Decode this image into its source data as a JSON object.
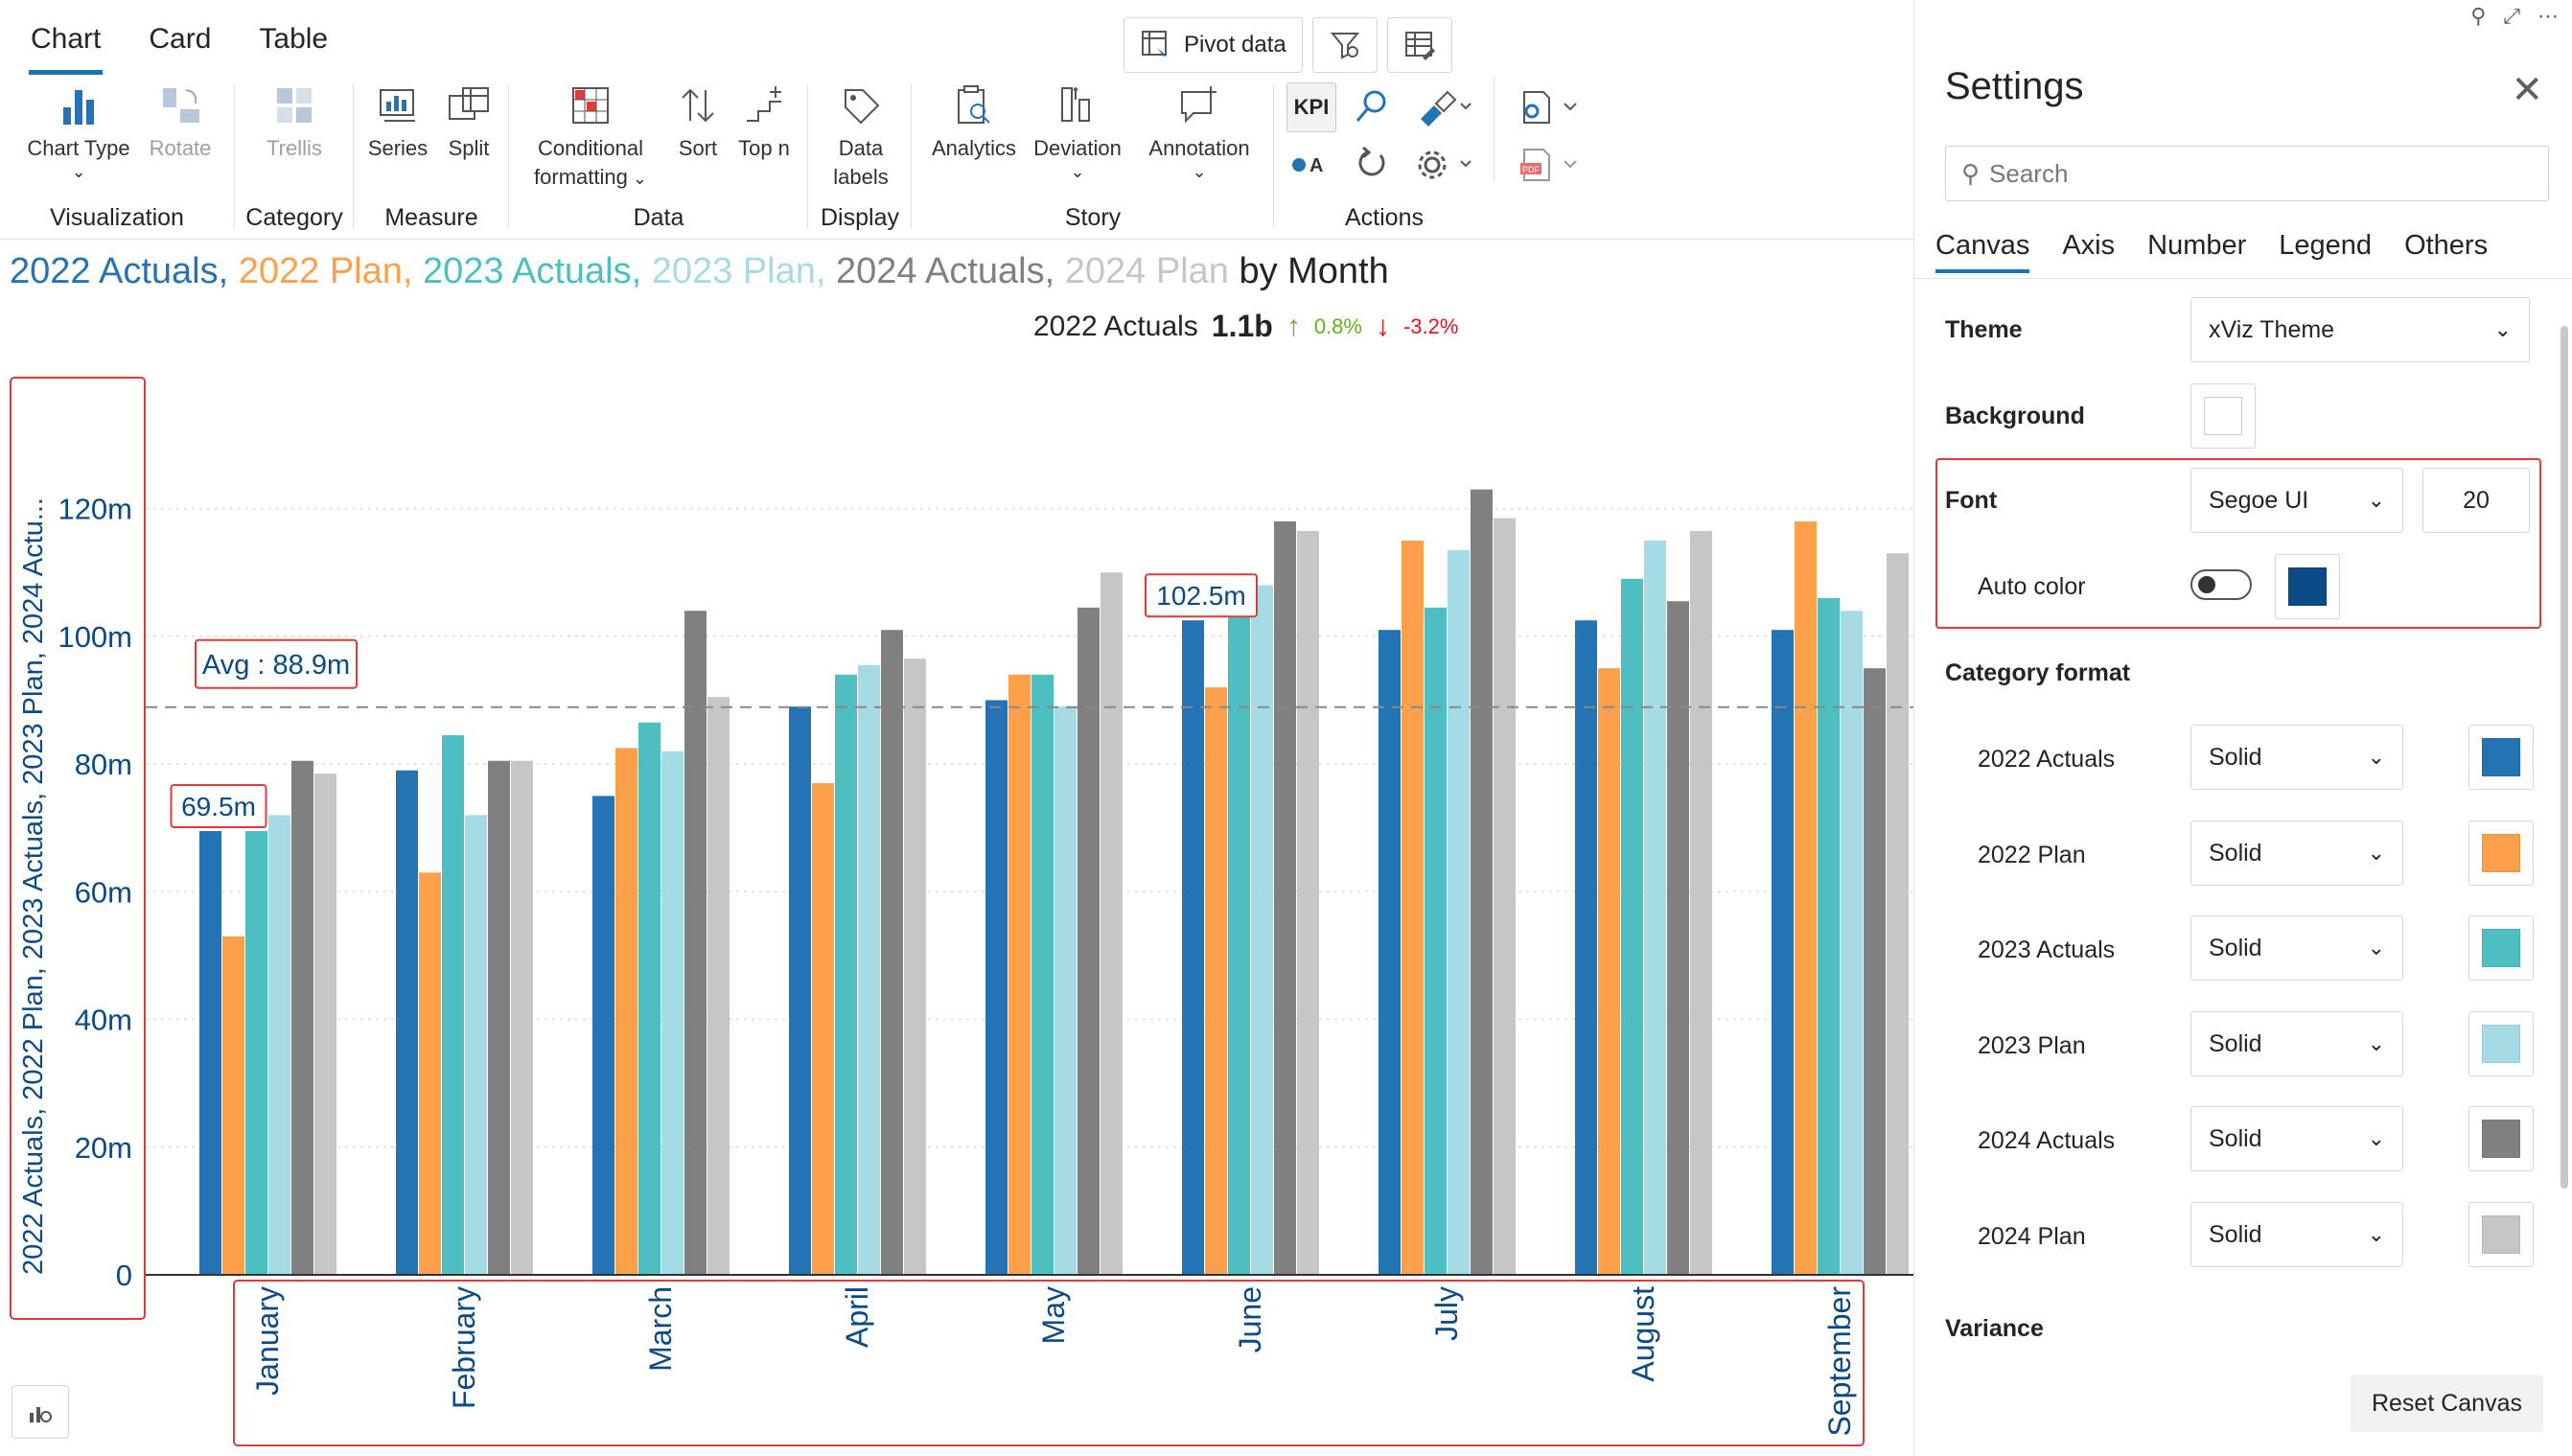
{
  "tabs": [
    "Chart",
    "Card",
    "Table"
  ],
  "top_buttons": {
    "pivot": "Pivot data"
  },
  "ribbon": {
    "visualization": {
      "label": "Visualization",
      "chart_type": "Chart Type",
      "rotate": "Rotate"
    },
    "category": {
      "label": "Category",
      "trellis": "Trellis"
    },
    "measure": {
      "label": "Measure",
      "series": "Series",
      "split": "Split"
    },
    "data": {
      "label": "Data",
      "conditional_1": "Conditional",
      "conditional_2": "formatting",
      "sort": "Sort",
      "top_n": "Top n"
    },
    "display": {
      "label": "Display",
      "data_labels_1": "Data",
      "data_labels_2": "labels"
    },
    "story": {
      "label": "Story",
      "analytics": "Analytics",
      "deviation": "Deviation",
      "annotation": "Annotation"
    },
    "actions": {
      "label": "Actions",
      "kpi": "KPI"
    }
  },
  "chart_title": {
    "parts": [
      "2022 Actuals,",
      " 2022 Plan,",
      " 2023 Actuals,",
      " 2023 Plan,",
      " 2024 Actuals,",
      " 2024 Plan"
    ],
    "suffix": " by Month"
  },
  "kpi": {
    "name": "2022 Actuals",
    "value": "1.1b",
    "up": "0.8%",
    "down": "-3.2%"
  },
  "chart_data": {
    "type": "bar",
    "categories": [
      "January",
      "February",
      "March",
      "April",
      "May",
      "June",
      "July",
      "August",
      "September"
    ],
    "ylabel": "2022 Actuals, 2022 Plan, 2023 Actuals, 2023 Plan, 2024 Actu...",
    "yticks": [
      "0",
      "20m",
      "40m",
      "60m",
      "80m",
      "100m",
      "120m"
    ],
    "ylim": [
      0,
      130
    ],
    "average": {
      "value": 88.9,
      "label": "Avg : 88.9m"
    },
    "data_labels": [
      {
        "series": 0,
        "category": 0,
        "text": "69.5m"
      },
      {
        "series": 0,
        "category": 5,
        "text": "102.5m"
      }
    ],
    "series": [
      {
        "name": "2022 Actuals",
        "color": "#2474b5",
        "values": [
          69.5,
          79,
          75,
          89,
          90,
          102.5,
          101,
          102.5,
          101
        ]
      },
      {
        "name": "2022 Plan",
        "color": "#fca04c",
        "values": [
          53,
          63,
          82.5,
          77,
          94,
          92,
          115,
          95,
          118
        ]
      },
      {
        "name": "2023 Actuals",
        "color": "#4dbfc1",
        "values": [
          69.5,
          84.5,
          86.5,
          94,
          94,
          103.5,
          104.5,
          109,
          106
        ]
      },
      {
        "name": "2023 Plan",
        "color": "#a5dbe5",
        "values": [
          72,
          72,
          82,
          95.5,
          89,
          108,
          113.5,
          115,
          104
        ]
      },
      {
        "name": "2024 Actuals",
        "color": "#808080",
        "values": [
          80.5,
          80.5,
          104,
          101,
          104.5,
          118,
          123,
          105.5,
          95
        ]
      },
      {
        "name": "2024 Plan",
        "color": "#c6c6c6",
        "values": [
          78.5,
          80.5,
          90.5,
          96.5,
          110,
          116.5,
          118.5,
          116.5,
          113
        ]
      }
    ],
    "grid": true
  },
  "settings": {
    "title": "Settings",
    "search_placeholder": "Search",
    "tabs": [
      "Canvas",
      "Axis",
      "Number",
      "Legend",
      "Others"
    ],
    "theme_label": "Theme",
    "theme_value": "xViz Theme",
    "background_label": "Background",
    "font_label": "Font",
    "font_value": "Segoe UI",
    "font_size": "20",
    "auto_color_label": "Auto color",
    "auto_color_swatch": "#0b4a86",
    "category_format_label": "Category format",
    "category_rows": [
      {
        "name": "2022 Actuals",
        "style": "Solid",
        "color": "#2474b5"
      },
      {
        "name": "2022 Plan",
        "style": "Solid",
        "color": "#fca04c"
      },
      {
        "name": "2023 Actuals",
        "style": "Solid",
        "color": "#4dbfc1"
      },
      {
        "name": "2023 Plan",
        "style": "Solid",
        "color": "#a5dbe5"
      },
      {
        "name": "2024 Actuals",
        "style": "Solid",
        "color": "#808080"
      },
      {
        "name": "2024 Plan",
        "style": "Solid",
        "color": "#c6c6c6"
      }
    ],
    "variance_label": "Variance",
    "reset_label": "Reset Canvas"
  }
}
